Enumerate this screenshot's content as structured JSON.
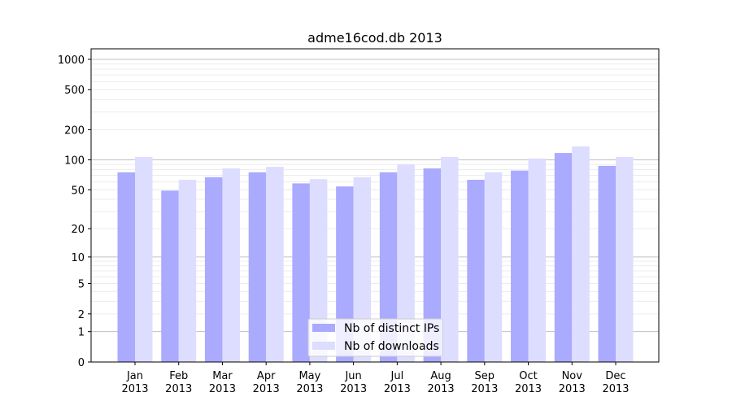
{
  "chart_data": {
    "type": "bar",
    "title": "adme16cod.db 2013",
    "xlabel": "",
    "ylabel": "",
    "yscale": "symlog",
    "ylim": [
      0,
      1300
    ],
    "yticks": [
      0,
      1,
      2,
      5,
      10,
      20,
      50,
      100,
      200,
      500,
      1000
    ],
    "grid": true,
    "legend_position": "bottom-center",
    "categories": [
      "Jan\n2013",
      "Feb\n2013",
      "Mar\n2013",
      "Apr\n2013",
      "May\n2013",
      "Jun\n2013",
      "Jul\n2013",
      "Aug\n2013",
      "Sep\n2013",
      "Oct\n2013",
      "Nov\n2013",
      "Dec\n2013"
    ],
    "series": [
      {
        "name": "Nb of distinct IPs",
        "color": "#aaaaff",
        "values": [
          75,
          49,
          67,
          75,
          58,
          54,
          75,
          82,
          63,
          78,
          117,
          87
        ]
      },
      {
        "name": "Nb of downloads",
        "color": "#ddddff",
        "values": [
          107,
          63,
          82,
          85,
          64,
          67,
          90,
          107,
          75,
          103,
          136,
          107
        ]
      }
    ]
  }
}
